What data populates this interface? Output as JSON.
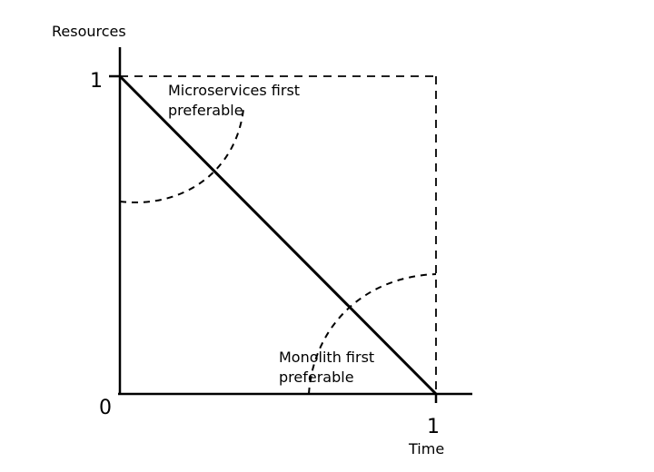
{
  "diagram": {
    "y_axis_label": "Resources",
    "x_axis_label": "Time",
    "y_tick_max": "1",
    "origin_label": "0",
    "x_tick_max": "1",
    "region_top": {
      "line1": "Microservices first",
      "line2": "preferable"
    },
    "region_bottom": {
      "line1": "Monolith first",
      "line2": "preferable"
    }
  }
}
